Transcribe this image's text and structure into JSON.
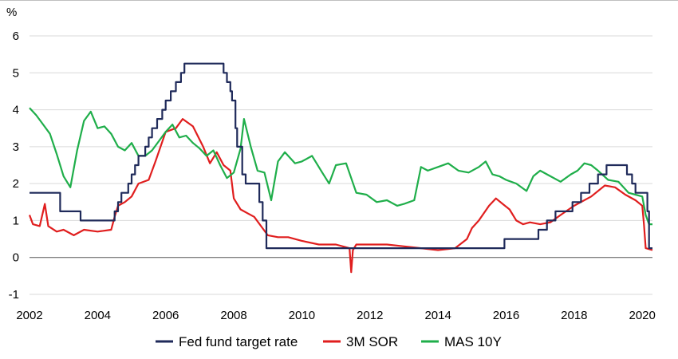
{
  "chart_data": {
    "type": "line",
    "title": "",
    "ylabel": "%",
    "xlabel": "",
    "ylim": [
      -1,
      6
    ],
    "xlim": [
      2002,
      2020.3
    ],
    "yticks": [
      6,
      5,
      4,
      3,
      2,
      1,
      0,
      -1
    ],
    "xticks": [
      2002,
      2004,
      2006,
      2008,
      2010,
      2012,
      2014,
      2016,
      2018,
      2020
    ],
    "grid": "horizontal",
    "legend_position": "bottom",
    "colors": {
      "fed": "#1f2a5a",
      "sor": "#e01e1e",
      "mas": "#1fae4a"
    },
    "series": [
      {
        "name": "Fed fund target rate",
        "step": true,
        "points": [
          [
            2002.0,
            1.75
          ],
          [
            2002.9,
            1.25
          ],
          [
            2003.5,
            1.0
          ],
          [
            2004.5,
            1.25
          ],
          [
            2004.6,
            1.5
          ],
          [
            2004.7,
            1.75
          ],
          [
            2004.9,
            2.0
          ],
          [
            2005.0,
            2.25
          ],
          [
            2005.1,
            2.5
          ],
          [
            2005.2,
            2.75
          ],
          [
            2005.4,
            3.0
          ],
          [
            2005.5,
            3.25
          ],
          [
            2005.6,
            3.5
          ],
          [
            2005.75,
            3.75
          ],
          [
            2005.9,
            4.0
          ],
          [
            2006.0,
            4.25
          ],
          [
            2006.15,
            4.5
          ],
          [
            2006.3,
            4.75
          ],
          [
            2006.45,
            5.0
          ],
          [
            2006.55,
            5.25
          ],
          [
            2007.7,
            5.0
          ],
          [
            2007.8,
            4.75
          ],
          [
            2007.9,
            4.5
          ],
          [
            2007.95,
            4.25
          ],
          [
            2008.05,
            3.5
          ],
          [
            2008.1,
            3.0
          ],
          [
            2008.25,
            2.25
          ],
          [
            2008.35,
            2.0
          ],
          [
            2008.75,
            1.5
          ],
          [
            2008.85,
            1.0
          ],
          [
            2008.96,
            0.25
          ],
          [
            2015.95,
            0.5
          ],
          [
            2016.95,
            0.75
          ],
          [
            2017.2,
            1.0
          ],
          [
            2017.45,
            1.25
          ],
          [
            2017.95,
            1.5
          ],
          [
            2018.2,
            1.75
          ],
          [
            2018.45,
            2.0
          ],
          [
            2018.7,
            2.25
          ],
          [
            2018.95,
            2.5
          ],
          [
            2019.55,
            2.25
          ],
          [
            2019.7,
            2.0
          ],
          [
            2019.8,
            1.75
          ],
          [
            2020.15,
            1.25
          ],
          [
            2020.2,
            0.25
          ],
          [
            2020.3,
            0.25
          ]
        ]
      },
      {
        "name": "3M SOR",
        "step": false,
        "points": [
          [
            2002.0,
            1.15
          ],
          [
            2002.1,
            0.9
          ],
          [
            2002.3,
            0.85
          ],
          [
            2002.45,
            1.45
          ],
          [
            2002.55,
            0.85
          ],
          [
            2002.8,
            0.7
          ],
          [
            2003.0,
            0.75
          ],
          [
            2003.3,
            0.6
          ],
          [
            2003.6,
            0.75
          ],
          [
            2004.0,
            0.7
          ],
          [
            2004.4,
            0.75
          ],
          [
            2004.5,
            1.1
          ],
          [
            2004.6,
            1.4
          ],
          [
            2004.8,
            1.5
          ],
          [
            2005.0,
            1.65
          ],
          [
            2005.2,
            2.0
          ],
          [
            2005.5,
            2.1
          ],
          [
            2005.7,
            2.6
          ],
          [
            2006.0,
            3.4
          ],
          [
            2006.3,
            3.5
          ],
          [
            2006.5,
            3.75
          ],
          [
            2006.8,
            3.55
          ],
          [
            2007.1,
            3.0
          ],
          [
            2007.3,
            2.55
          ],
          [
            2007.5,
            2.85
          ],
          [
            2007.7,
            2.5
          ],
          [
            2007.9,
            2.35
          ],
          [
            2008.0,
            1.6
          ],
          [
            2008.2,
            1.3
          ],
          [
            2008.4,
            1.2
          ],
          [
            2008.6,
            1.1
          ],
          [
            2008.8,
            0.85
          ],
          [
            2009.0,
            0.6
          ],
          [
            2009.3,
            0.55
          ],
          [
            2009.6,
            0.55
          ],
          [
            2010.0,
            0.45
          ],
          [
            2010.5,
            0.35
          ],
          [
            2011.0,
            0.35
          ],
          [
            2011.4,
            0.25
          ],
          [
            2011.45,
            -0.4
          ],
          [
            2011.5,
            0.2
          ],
          [
            2011.6,
            0.35
          ],
          [
            2012.0,
            0.35
          ],
          [
            2012.5,
            0.35
          ],
          [
            2013.0,
            0.3
          ],
          [
            2013.5,
            0.25
          ],
          [
            2014.0,
            0.2
          ],
          [
            2014.5,
            0.25
          ],
          [
            2014.85,
            0.5
          ],
          [
            2015.0,
            0.8
          ],
          [
            2015.2,
            1.0
          ],
          [
            2015.5,
            1.4
          ],
          [
            2015.7,
            1.6
          ],
          [
            2015.9,
            1.45
          ],
          [
            2016.1,
            1.3
          ],
          [
            2016.3,
            1.0
          ],
          [
            2016.5,
            0.9
          ],
          [
            2016.7,
            0.95
          ],
          [
            2017.0,
            0.9
          ],
          [
            2017.3,
            0.95
          ],
          [
            2017.6,
            1.15
          ],
          [
            2018.0,
            1.4
          ],
          [
            2018.5,
            1.65
          ],
          [
            2018.9,
            1.95
          ],
          [
            2019.2,
            1.9
          ],
          [
            2019.5,
            1.7
          ],
          [
            2019.8,
            1.55
          ],
          [
            2020.0,
            1.4
          ],
          [
            2020.05,
            0.9
          ],
          [
            2020.1,
            0.25
          ],
          [
            2020.3,
            0.2
          ]
        ]
      },
      {
        "name": "MAS 10Y",
        "step": false,
        "points": [
          [
            2002.0,
            4.05
          ],
          [
            2002.2,
            3.85
          ],
          [
            2002.4,
            3.6
          ],
          [
            2002.6,
            3.35
          ],
          [
            2002.8,
            2.8
          ],
          [
            2003.0,
            2.2
          ],
          [
            2003.2,
            1.9
          ],
          [
            2003.4,
            2.9
          ],
          [
            2003.6,
            3.7
          ],
          [
            2003.8,
            3.95
          ],
          [
            2004.0,
            3.5
          ],
          [
            2004.2,
            3.55
          ],
          [
            2004.4,
            3.35
          ],
          [
            2004.6,
            3.0
          ],
          [
            2004.8,
            2.9
          ],
          [
            2005.0,
            3.1
          ],
          [
            2005.2,
            2.75
          ],
          [
            2005.4,
            2.75
          ],
          [
            2005.6,
            2.9
          ],
          [
            2005.8,
            3.15
          ],
          [
            2006.0,
            3.4
          ],
          [
            2006.2,
            3.6
          ],
          [
            2006.4,
            3.25
          ],
          [
            2006.6,
            3.3
          ],
          [
            2006.8,
            3.1
          ],
          [
            2007.0,
            2.95
          ],
          [
            2007.2,
            2.75
          ],
          [
            2007.4,
            2.9
          ],
          [
            2007.6,
            2.5
          ],
          [
            2007.8,
            2.15
          ],
          [
            2008.0,
            2.3
          ],
          [
            2008.2,
            2.95
          ],
          [
            2008.3,
            3.75
          ],
          [
            2008.5,
            3.0
          ],
          [
            2008.7,
            2.35
          ],
          [
            2008.9,
            2.3
          ],
          [
            2009.1,
            1.55
          ],
          [
            2009.3,
            2.6
          ],
          [
            2009.5,
            2.85
          ],
          [
            2009.8,
            2.55
          ],
          [
            2010.0,
            2.6
          ],
          [
            2010.3,
            2.75
          ],
          [
            2010.6,
            2.3
          ],
          [
            2010.8,
            2.0
          ],
          [
            2011.0,
            2.5
          ],
          [
            2011.3,
            2.55
          ],
          [
            2011.6,
            1.75
          ],
          [
            2011.9,
            1.7
          ],
          [
            2012.2,
            1.5
          ],
          [
            2012.5,
            1.55
          ],
          [
            2012.8,
            1.4
          ],
          [
            2013.0,
            1.45
          ],
          [
            2013.3,
            1.55
          ],
          [
            2013.5,
            2.45
          ],
          [
            2013.7,
            2.35
          ],
          [
            2014.0,
            2.45
          ],
          [
            2014.3,
            2.55
          ],
          [
            2014.6,
            2.35
          ],
          [
            2014.9,
            2.3
          ],
          [
            2015.2,
            2.45
          ],
          [
            2015.4,
            2.6
          ],
          [
            2015.6,
            2.25
          ],
          [
            2015.8,
            2.2
          ],
          [
            2016.0,
            2.1
          ],
          [
            2016.3,
            2.0
          ],
          [
            2016.6,
            1.8
          ],
          [
            2016.8,
            2.2
          ],
          [
            2017.0,
            2.35
          ],
          [
            2017.3,
            2.2
          ],
          [
            2017.6,
            2.05
          ],
          [
            2017.9,
            2.25
          ],
          [
            2018.1,
            2.35
          ],
          [
            2018.3,
            2.55
          ],
          [
            2018.5,
            2.5
          ],
          [
            2018.7,
            2.35
          ],
          [
            2019.0,
            2.1
          ],
          [
            2019.3,
            2.05
          ],
          [
            2019.6,
            1.75
          ],
          [
            2019.8,
            1.7
          ],
          [
            2020.0,
            1.65
          ],
          [
            2020.1,
            1.15
          ],
          [
            2020.2,
            0.9
          ],
          [
            2020.3,
            0.9
          ]
        ]
      }
    ]
  }
}
